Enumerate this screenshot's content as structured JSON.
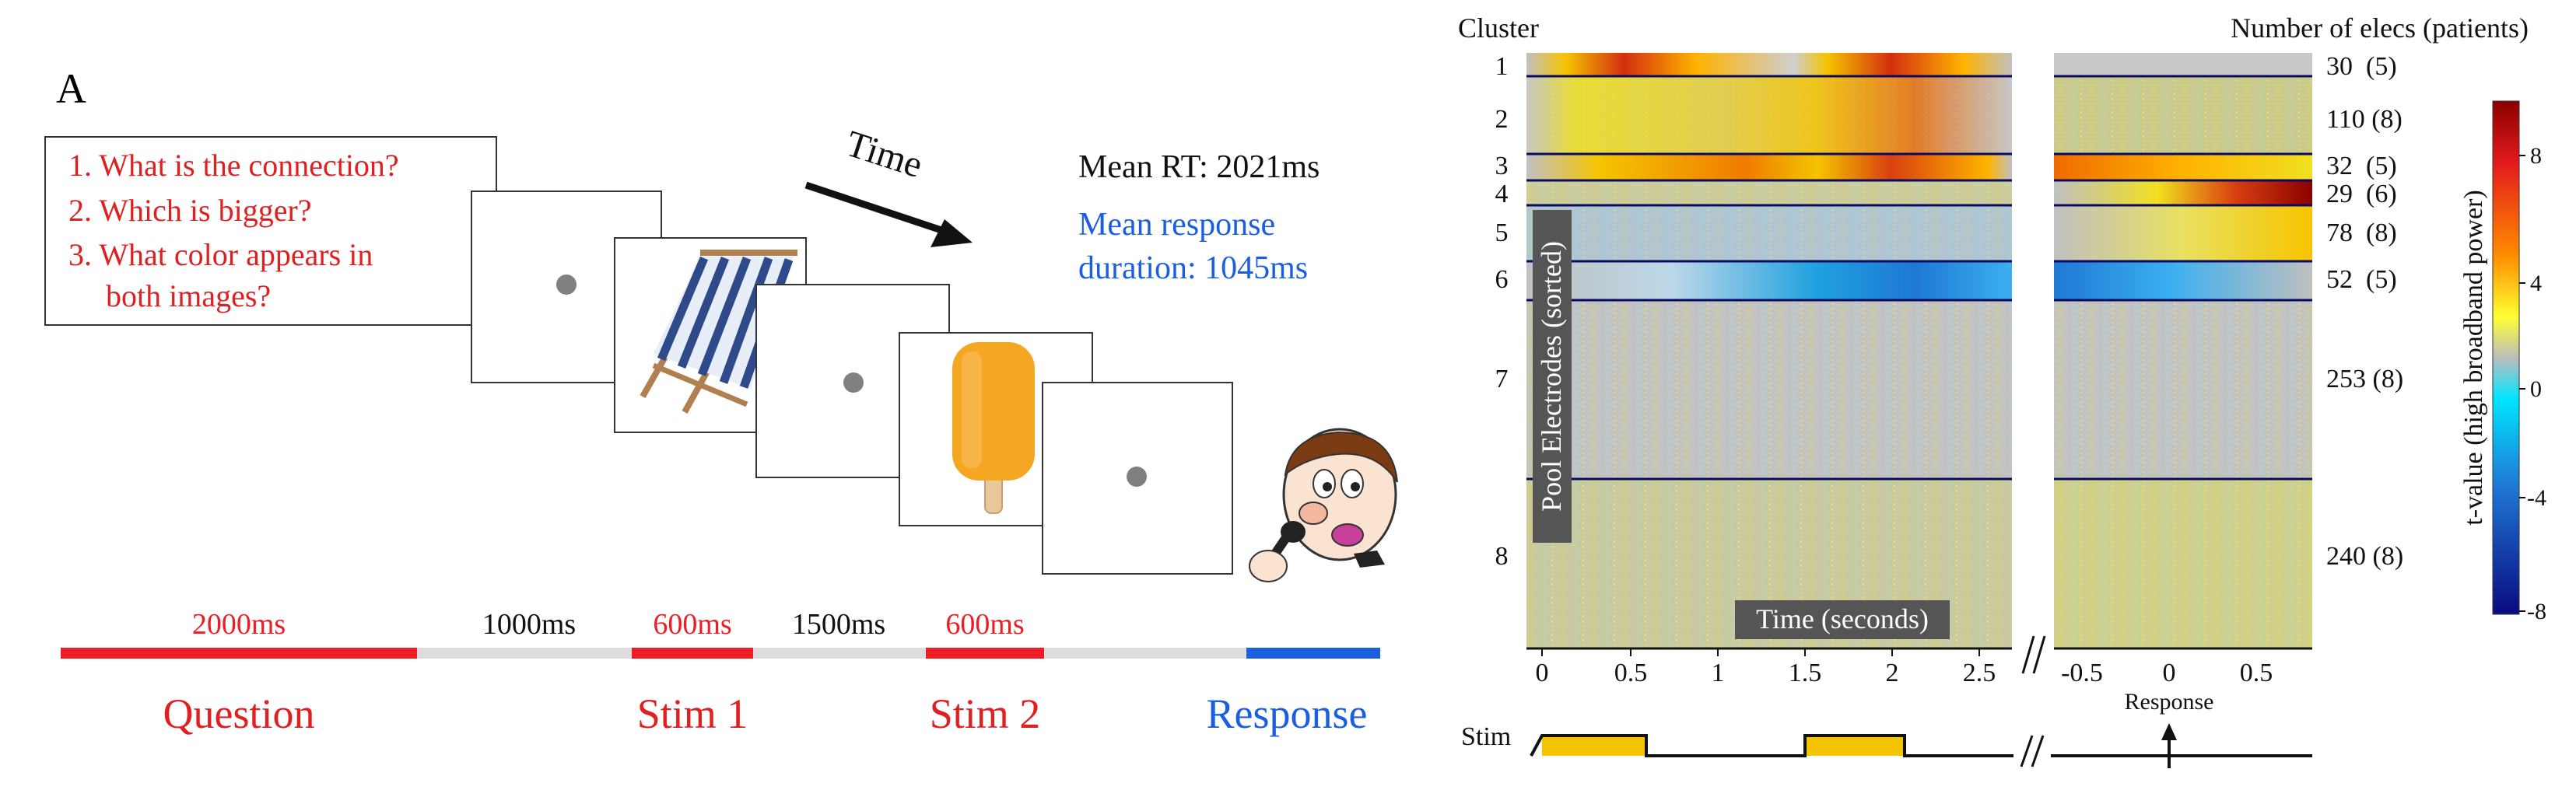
{
  "panel_letter": "A",
  "task": {
    "questions": [
      "1. What is the connection?",
      "2. Which is bigger?",
      "3. What color appears in",
      "both images?"
    ],
    "time_label": "Time",
    "mean_rt": "Mean RT: 2021ms",
    "response_line1": "Mean response",
    "response_line2": "duration:  1045ms",
    "timeline": {
      "segments": [
        {
          "label": "2000ms",
          "color": "#ee1c24"
        },
        {
          "label": "1000ms",
          "color": "#dddddd"
        },
        {
          "label": "600ms",
          "color": "#ee1c24"
        },
        {
          "label": "1500ms",
          "color": "#dddddd"
        },
        {
          "label": "600ms",
          "color": "#ee1c24"
        },
        {
          "label": "",
          "color": "#dddddd"
        },
        {
          "label": "",
          "color": "#1a5fe0"
        }
      ],
      "events": [
        {
          "label": "Question",
          "color": "#e02020"
        },
        {
          "label": "Stim 1",
          "color": "#e02020"
        },
        {
          "label": "Stim 2",
          "color": "#e02020"
        },
        {
          "label": "Response",
          "color": "#1a5fe0"
        }
      ]
    },
    "colors": {
      "question_red": "#e02020",
      "response_blue": "#1a5fe0",
      "fixation": "#808080",
      "chair_stripe": "#2e4a8a",
      "popsicle": "#f5a623"
    }
  },
  "heatmap": {
    "cluster_header": "Cluster",
    "elecs_header": "Number of elecs (patients)",
    "ylabel": "Pool Electrodes (sorted)",
    "xlabel": "Time (seconds)",
    "clusters": [
      {
        "id": "1",
        "count": "30  (5)"
      },
      {
        "id": "2",
        "count": "110 (8)"
      },
      {
        "id": "3",
        "count": "32  (5)"
      },
      {
        "id": "4",
        "count": "29  (6)"
      },
      {
        "id": "5",
        "count": "78  (8)"
      },
      {
        "id": "6",
        "count": "52  (5)"
      },
      {
        "id": "7",
        "count": "253 (8)"
      },
      {
        "id": "8",
        "count": "240 (8)"
      }
    ],
    "x_ticks_stim": [
      "0",
      "0.5",
      "1",
      "1.5",
      "2",
      "2.5"
    ],
    "x_ticks_resp": [
      "-0.5",
      "0",
      "0.5"
    ],
    "stim_label": "Stim",
    "response_label": "Response",
    "colorbar": {
      "label": "t-value (high broadband power)",
      "ticks": [
        "8",
        "4",
        "0",
        "-4",
        "-8"
      ],
      "colors": [
        "#7a0000",
        "#e31a1c",
        "#ff7f00",
        "#ffff33",
        "#bdbdbd",
        "#00e5ff",
        "#1f78d4",
        "#0a0a80"
      ]
    }
  }
}
